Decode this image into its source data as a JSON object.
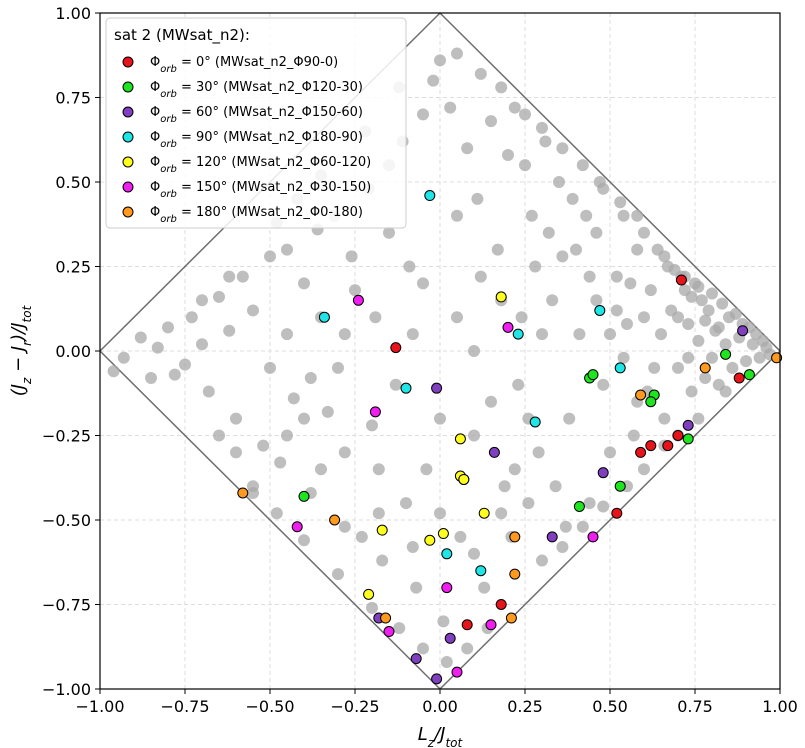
{
  "chart_data": {
    "type": "scatter",
    "xlabel": "L_z/J_tot",
    "ylabel": "(J_z − J_r)/J_tot",
    "xlim": [
      -1.0,
      1.0
    ],
    "ylim": [
      -1.0,
      1.0
    ],
    "xticks": [
      "−1.00",
      "−0.75",
      "−0.50",
      "−0.25",
      "0.00",
      "0.25",
      "0.50",
      "0.75",
      "1.00"
    ],
    "yticks": [
      "−1.00",
      "−0.75",
      "−0.50",
      "−0.25",
      "0.00",
      "0.25",
      "0.50",
      "0.75",
      "1.00"
    ],
    "grid": true,
    "boundary": [
      [
        -1,
        0
      ],
      [
        0,
        1
      ],
      [
        1,
        0
      ],
      [
        0,
        -1
      ]
    ],
    "legend": {
      "placement": "top-left",
      "title": "sat 2 (MWsat_n2):",
      "entries": [
        {
          "label": "Φorb = 0° (MWsat_n2_Φ90-0)",
          "prefix": "Φ",
          "sub": "orb",
          "text": " = 0° (MWsat_n2_Φ90-0)",
          "color": "#e8141b"
        },
        {
          "label": "Φorb = 30° (MWsat_n2_Φ120-30)",
          "prefix": "Φ",
          "sub": "orb",
          "text": " = 30° (MWsat_n2_Φ120-30)",
          "color": "#1ee61e"
        },
        {
          "label": "Φorb = 60° (MWsat_n2_Φ150-60)",
          "prefix": "Φ",
          "sub": "orb",
          "text": " = 60° (MWsat_n2_Φ150-60)",
          "color": "#7f3fbf"
        },
        {
          "label": "Φorb = 90° (MWsat_n2_Φ180-90)",
          "prefix": "Φ",
          "sub": "orb",
          "text": " = 90° (MWsat_n2_Φ180-90)",
          "color": "#1ee6e6"
        },
        {
          "label": "Φorb = 120° (MWsat_n2_Φ60-120)",
          "prefix": "Φ",
          "sub": "orb",
          "text": " = 120° (MWsat_n2_Φ60-120)",
          "color": "#ffff1e"
        },
        {
          "label": "Φorb = 150° (MWsat_n2_Φ30-150)",
          "prefix": "Φ",
          "sub": "orb",
          "text": " = 150° (MWsat_n2_Φ30-150)",
          "color": "#f01ef0"
        },
        {
          "label": "Φorb = 180° (MWsat_n2_Φ0-180)",
          "prefix": "Φ",
          "sub": "orb",
          "text": " = 180° (MWsat_n2_Φ0-180)",
          "color": "#ff9a1e"
        }
      ]
    },
    "background_color": "#a8a8a8",
    "background_points": [
      [
        -0.96,
        -0.06
      ],
      [
        -0.93,
        -0.02
      ],
      [
        -0.88,
        0.04
      ],
      [
        -0.85,
        -0.08
      ],
      [
        -0.83,
        0.01
      ],
      [
        -0.8,
        0.07
      ],
      [
        -0.78,
        -0.07
      ],
      [
        -0.75,
        -0.04
      ],
      [
        -0.73,
        0.1
      ],
      [
        -0.7,
        0.02
      ],
      [
        -0.68,
        -0.12
      ],
      [
        -0.65,
        0.16
      ],
      [
        -0.62,
        0.06
      ],
      [
        -0.6,
        -0.2
      ],
      [
        -0.58,
        0.22
      ],
      [
        -0.55,
        0.12
      ],
      [
        -0.52,
        -0.28
      ],
      [
        -0.5,
        0.28
      ],
      [
        -0.47,
        -0.33
      ],
      [
        -0.45,
        0.3
      ],
      [
        -0.43,
        -0.14
      ],
      [
        -0.4,
        0.2
      ],
      [
        -0.38,
        -0.42
      ],
      [
        -0.36,
        0.36
      ],
      [
        -0.33,
        -0.18
      ],
      [
        -0.31,
        0.4
      ],
      [
        -0.28,
        -0.3
      ],
      [
        -0.26,
        0.28
      ],
      [
        -0.23,
        -0.55
      ],
      [
        -0.21,
        0.48
      ],
      [
        -0.19,
        0.1
      ],
      [
        -0.17,
        -0.62
      ],
      [
        -0.15,
        0.55
      ],
      [
        -0.13,
        -0.1
      ],
      [
        -0.11,
        0.62
      ],
      [
        -0.09,
        0.25
      ],
      [
        -0.07,
        -0.7
      ],
      [
        -0.05,
        0.7
      ],
      [
        -0.04,
        -0.35
      ],
      [
        -0.02,
        0.8
      ],
      [
        0.0,
        0.86
      ],
      [
        0.01,
        -0.8
      ],
      [
        0.03,
        0.72
      ],
      [
        0.05,
        0.1
      ],
      [
        0.06,
        -0.55
      ],
      [
        0.08,
        0.6
      ],
      [
        0.1,
        -0.25
      ],
      [
        0.11,
        0.45
      ],
      [
        0.13,
        -0.7
      ],
      [
        0.15,
        0.68
      ],
      [
        0.17,
        0.3
      ],
      [
        0.19,
        -0.4
      ],
      [
        0.2,
        0.58
      ],
      [
        0.22,
        0.72
      ],
      [
        0.23,
        -0.1
      ],
      [
        0.25,
        0.55
      ],
      [
        0.27,
        0.4
      ],
      [
        0.29,
        -0.3
      ],
      [
        0.31,
        0.62
      ],
      [
        0.33,
        0.15
      ],
      [
        0.35,
        0.5
      ],
      [
        0.37,
        -0.52
      ],
      [
        0.39,
        0.45
      ],
      [
        0.41,
        0.05
      ],
      [
        0.43,
        0.4
      ],
      [
        0.44,
        -0.45
      ],
      [
        0.46,
        0.35
      ],
      [
        0.48,
        0.48
      ],
      [
        0.5,
        -0.3
      ],
      [
        0.52,
        0.22
      ],
      [
        0.54,
        0.4
      ],
      [
        0.55,
        0.08
      ],
      [
        0.57,
        -0.25
      ],
      [
        0.58,
        0.3
      ],
      [
        0.6,
        0.35
      ],
      [
        0.61,
        -0.12
      ],
      [
        0.62,
        0.18
      ],
      [
        0.64,
        0.3
      ],
      [
        0.65,
        0.05
      ],
      [
        0.66,
        -0.2
      ],
      [
        0.67,
        0.25
      ],
      [
        0.68,
        0.12
      ],
      [
        0.7,
        -0.05
      ],
      [
        0.71,
        0.22
      ],
      [
        0.72,
        0.18
      ],
      [
        0.73,
        0.08
      ],
      [
        0.74,
        -0.12
      ],
      [
        0.75,
        0.2
      ],
      [
        0.76,
        0.03
      ],
      [
        0.77,
        0.15
      ],
      [
        0.78,
        -0.08
      ],
      [
        0.79,
        0.12
      ],
      [
        0.8,
        0.17
      ],
      [
        0.81,
        0.06
      ],
      [
        0.82,
        -0.1
      ],
      [
        0.83,
        0.14
      ],
      [
        0.84,
        0.02
      ],
      [
        0.85,
        0.1
      ],
      [
        0.86,
        -0.05
      ],
      [
        0.87,
        0.11
      ],
      [
        0.88,
        0.04
      ],
      [
        0.89,
        0.08
      ],
      [
        0.9,
        -0.03
      ],
      [
        0.91,
        0.07
      ],
      [
        0.92,
        0.02
      ],
      [
        0.93,
        0.05
      ],
      [
        0.94,
        -0.02
      ],
      [
        0.95,
        0.03
      ],
      [
        0.96,
        0.01
      ],
      [
        0.97,
        -0.01
      ],
      [
        0.66,
        0.28
      ],
      [
        0.69,
        0.24
      ],
      [
        0.72,
        0.22
      ],
      [
        0.74,
        0.16
      ],
      [
        0.76,
        0.19
      ],
      [
        0.7,
        0.1
      ],
      [
        0.73,
        -0.02
      ],
      [
        0.78,
        0.09
      ],
      [
        0.8,
        -0.02
      ],
      [
        0.82,
        0.07
      ],
      [
        0.6,
        0.1
      ],
      [
        0.63,
        -0.05
      ],
      [
        0.58,
        -0.15
      ],
      [
        0.56,
        0.2
      ],
      [
        0.54,
        -0.02
      ],
      [
        0.52,
        0.12
      ],
      [
        0.5,
        0.05
      ],
      [
        0.48,
        -0.1
      ],
      [
        0.46,
        0.15
      ],
      [
        0.44,
        0.22
      ],
      [
        0.4,
        0.3
      ],
      [
        0.38,
        -0.2
      ],
      [
        0.36,
        0.28
      ],
      [
        0.34,
        -0.4
      ],
      [
        0.32,
        0.35
      ],
      [
        0.3,
        0.05
      ],
      [
        0.28,
        0.25
      ],
      [
        0.26,
        -0.2
      ],
      [
        0.24,
        0.1
      ],
      [
        0.21,
        -0.55
      ],
      [
        -0.5,
        -0.05
      ],
      [
        -0.45,
        0.05
      ],
      [
        -0.4,
        -0.2
      ],
      [
        -0.35,
        0.1
      ],
      [
        -0.3,
        -0.05
      ],
      [
        -0.25,
        0.18
      ],
      [
        -0.2,
        -0.22
      ],
      [
        -0.15,
        0.35
      ],
      [
        -0.1,
        -0.45
      ],
      [
        -0.05,
        0.2
      ],
      [
        0.0,
        -0.2
      ],
      [
        0.05,
        0.4
      ],
      [
        0.1,
        0.0
      ],
      [
        0.15,
        -0.15
      ],
      [
        0.18,
        0.15
      ],
      [
        0.12,
        0.22
      ],
      [
        -0.08,
        0.05
      ],
      [
        -0.18,
        -0.35
      ],
      [
        -0.28,
        0.05
      ],
      [
        -0.38,
        -0.08
      ],
      [
        -0.6,
        -0.3
      ],
      [
        -0.55,
        -0.4
      ],
      [
        -0.65,
        -0.25
      ],
      [
        -0.7,
        0.15
      ],
      [
        -0.62,
        0.22
      ],
      [
        -0.48,
        0.38
      ],
      [
        -0.42,
        0.45
      ],
      [
        -0.35,
        0.52
      ],
      [
        -0.22,
        0.65
      ],
      [
        -0.12,
        0.78
      ],
      [
        0.05,
        0.88
      ],
      [
        0.12,
        0.82
      ],
      [
        0.18,
        0.78
      ],
      [
        0.25,
        0.7
      ],
      [
        0.3,
        0.66
      ],
      [
        0.36,
        0.6
      ],
      [
        0.42,
        0.55
      ],
      [
        0.47,
        0.5
      ],
      [
        0.53,
        0.44
      ],
      [
        0.58,
        0.4
      ],
      [
        0.08,
        -0.88
      ],
      [
        0.14,
        -0.82
      ],
      [
        0.02,
        -0.92
      ],
      [
        -0.05,
        -0.88
      ],
      [
        -0.12,
        -0.82
      ],
      [
        -0.2,
        -0.76
      ],
      [
        -0.3,
        -0.66
      ],
      [
        -0.4,
        -0.56
      ],
      [
        -0.48,
        -0.48
      ],
      [
        -0.55,
        -0.42
      ],
      [
        0.3,
        -0.62
      ],
      [
        0.36,
        -0.58
      ],
      [
        0.42,
        -0.52
      ],
      [
        0.48,
        -0.46
      ],
      [
        0.55,
        -0.4
      ],
      [
        0.6,
        -0.35
      ],
      [
        0.66,
        -0.28
      ],
      [
        0.7,
        -0.25
      ],
      [
        0.76,
        -0.2
      ],
      [
        0.84,
        -0.12
      ],
      [
        0.22,
        -0.35
      ],
      [
        0.18,
        -0.48
      ],
      [
        0.26,
        -0.45
      ],
      [
        0.1,
        -0.6
      ],
      [
        0.0,
        -0.48
      ],
      [
        -0.08,
        -0.58
      ],
      [
        -0.18,
        -0.48
      ],
      [
        -0.28,
        -0.52
      ],
      [
        -0.35,
        -0.35
      ],
      [
        -0.45,
        -0.25
      ]
    ],
    "series": [
      {
        "name": "Φorb = 0°",
        "color": "#e8141b",
        "points": [
          [
            0.71,
            0.21
          ],
          [
            -0.13,
            0.01
          ],
          [
            0.88,
            -0.08
          ],
          [
            0.7,
            -0.25
          ],
          [
            0.62,
            -0.28
          ],
          [
            0.59,
            -0.3
          ],
          [
            0.52,
            -0.48
          ],
          [
            0.67,
            -0.28
          ],
          [
            0.18,
            -0.75
          ],
          [
            0.08,
            -0.81
          ]
        ]
      },
      {
        "name": "Φorb = 30°",
        "color": "#1ee61e",
        "points": [
          [
            0.84,
            -0.01
          ],
          [
            0.91,
            -0.07
          ],
          [
            0.44,
            -0.08
          ],
          [
            0.45,
            -0.07
          ],
          [
            0.63,
            -0.13
          ],
          [
            0.62,
            -0.15
          ],
          [
            0.73,
            -0.26
          ],
          [
            0.53,
            -0.4
          ],
          [
            0.41,
            -0.46
          ],
          [
            -0.4,
            -0.43
          ]
        ]
      },
      {
        "name": "Φorb = 60°",
        "color": "#7f3fbf",
        "points": [
          [
            0.89,
            0.06
          ],
          [
            -0.01,
            -0.11
          ],
          [
            0.73,
            -0.22
          ],
          [
            0.48,
            -0.36
          ],
          [
            0.16,
            -0.3
          ],
          [
            0.33,
            -0.55
          ],
          [
            -0.18,
            -0.79
          ],
          [
            0.03,
            -0.85
          ],
          [
            -0.07,
            -0.91
          ],
          [
            -0.01,
            -0.97
          ]
        ]
      },
      {
        "name": "Φorb = 90°",
        "color": "#1ee6e6",
        "points": [
          [
            -0.03,
            0.46
          ],
          [
            0.47,
            0.12
          ],
          [
            -0.34,
            0.1
          ],
          [
            0.23,
            0.05
          ],
          [
            0.53,
            -0.05
          ],
          [
            -0.1,
            -0.11
          ],
          [
            0.28,
            -0.21
          ],
          [
            0.07,
            -0.38
          ],
          [
            0.02,
            -0.6
          ],
          [
            0.12,
            -0.65
          ]
        ]
      },
      {
        "name": "Φorb = 120°",
        "color": "#ffff1e",
        "points": [
          [
            0.18,
            0.16
          ],
          [
            0.06,
            -0.26
          ],
          [
            0.06,
            -0.37
          ],
          [
            0.07,
            -0.38
          ],
          [
            0.13,
            -0.48
          ],
          [
            -0.17,
            -0.53
          ],
          [
            0.01,
            -0.54
          ],
          [
            -0.03,
            -0.56
          ],
          [
            -0.21,
            -0.72
          ]
        ]
      },
      {
        "name": "Φorb = 150°",
        "color": "#f01ef0",
        "points": [
          [
            -0.24,
            0.15
          ],
          [
            0.2,
            0.07
          ],
          [
            -0.19,
            -0.18
          ],
          [
            -0.42,
            -0.52
          ],
          [
            0.45,
            -0.55
          ],
          [
            0.02,
            -0.7
          ],
          [
            0.15,
            -0.81
          ],
          [
            -0.15,
            -0.83
          ],
          [
            0.05,
            -0.95
          ]
        ]
      },
      {
        "name": "Φorb = 180°",
        "color": "#ff9a1e",
        "points": [
          [
            0.99,
            -0.02
          ],
          [
            0.78,
            -0.05
          ],
          [
            0.59,
            -0.13
          ],
          [
            -0.58,
            -0.42
          ],
          [
            -0.31,
            -0.5
          ],
          [
            0.22,
            -0.55
          ],
          [
            0.22,
            -0.66
          ],
          [
            -0.16,
            -0.79
          ],
          [
            0.21,
            -0.79
          ]
        ]
      }
    ]
  }
}
